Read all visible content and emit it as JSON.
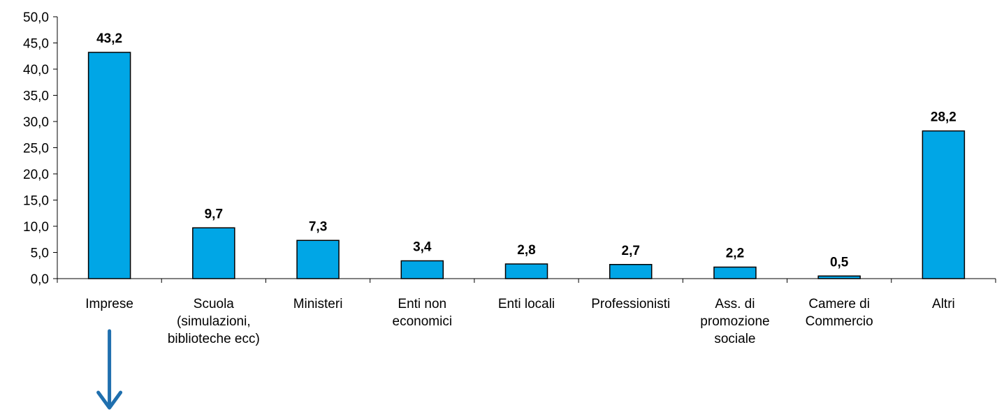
{
  "chart_data": {
    "type": "bar",
    "categories": [
      [
        "Imprese"
      ],
      [
        "Scuola",
        "(simulazioni,",
        "biblioteche ecc)"
      ],
      [
        "Ministeri"
      ],
      [
        "Enti non",
        "economici"
      ],
      [
        "Enti locali"
      ],
      [
        "Professionisti"
      ],
      [
        "Ass. di",
        "promozione",
        "sociale"
      ],
      [
        "Camere di",
        "Commercio"
      ],
      [
        "Altri"
      ]
    ],
    "values": [
      43.2,
      9.7,
      7.3,
      3.4,
      2.8,
      2.7,
      2.2,
      0.5,
      28.2
    ],
    "value_labels": [
      "43,2",
      "9,7",
      "7,3",
      "3,4",
      "2,8",
      "2,7",
      "2,2",
      "0,5",
      "28,2"
    ],
    "y_ticks": [
      "0,0",
      "5,0",
      "10,0",
      "15,0",
      "20,0",
      "25,0",
      "30,0",
      "35,0",
      "40,0",
      "45,0",
      "50,0"
    ],
    "ylim": [
      0,
      50
    ],
    "grid": false,
    "bar_color": "#00a6e6",
    "bar_stroke": "#000000",
    "arrow_color": "#1f6fae",
    "arrow_under_category": "Imprese"
  }
}
